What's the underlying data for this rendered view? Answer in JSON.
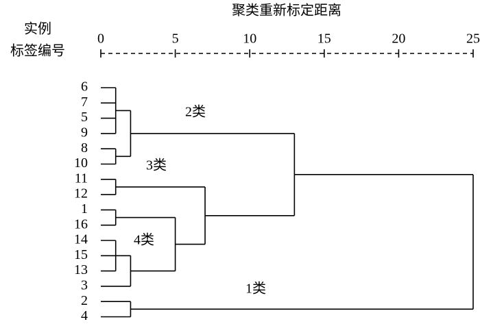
{
  "chart_data": {
    "type": "dendrogram",
    "title": "聚类重新标定距离",
    "ylabel": [
      "实例",
      "标签编号"
    ],
    "xlim": [
      0,
      25
    ],
    "xticks": [
      0,
      5,
      10,
      15,
      20,
      25
    ],
    "leaves": [
      "6",
      "7",
      "5",
      "9",
      "8",
      "10",
      "11",
      "12",
      "1",
      "16",
      "14",
      "15",
      "13",
      "3",
      "2",
      "4"
    ],
    "merges": [
      {
        "children": [
          [
            "6"
          ],
          [
            "7"
          ],
          [
            "5"
          ],
          [
            "9"
          ]
        ],
        "distance": 1
      },
      {
        "children": [
          [
            "8"
          ],
          [
            "10"
          ]
        ],
        "distance": 1
      },
      {
        "children": [
          [
            "6",
            "7",
            "5",
            "9"
          ],
          [
            "8",
            "10"
          ]
        ],
        "distance": 2
      },
      {
        "children": [
          [
            "11"
          ],
          [
            "12"
          ]
        ],
        "distance": 1
      },
      {
        "children": [
          [
            "1"
          ],
          [
            "16"
          ]
        ],
        "distance": 1
      },
      {
        "children": [
          [
            "14"
          ],
          [
            "15"
          ],
          [
            "13"
          ]
        ],
        "distance": 1
      },
      {
        "children": [
          [
            "14",
            "15",
            "13"
          ],
          [
            "3"
          ]
        ],
        "distance": 2
      },
      {
        "children": [
          [
            "1",
            "16"
          ],
          [
            "14",
            "15",
            "13",
            "3"
          ]
        ],
        "distance": 5
      },
      {
        "children": [
          [
            "11",
            "12"
          ],
          [
            "1",
            "16",
            "14",
            "15",
            "13",
            "3"
          ]
        ],
        "distance": 7
      },
      {
        "children": [
          [
            "6",
            "7",
            "5",
            "9",
            "8",
            "10"
          ],
          [
            "11",
            "12",
            "1",
            "16",
            "14",
            "15",
            "13",
            "3"
          ]
        ],
        "distance": 13
      },
      {
        "children": [
          [
            "2"
          ],
          [
            "4"
          ]
        ],
        "distance": 2
      },
      {
        "children": [
          [
            "6",
            "7",
            "5",
            "9",
            "8",
            "10",
            "11",
            "12",
            "1",
            "16",
            "14",
            "15",
            "13",
            "3"
          ],
          [
            "2",
            "4"
          ]
        ],
        "distance": 25
      }
    ],
    "annotations": [
      "2类",
      "3类",
      "4类",
      "1类"
    ]
  }
}
